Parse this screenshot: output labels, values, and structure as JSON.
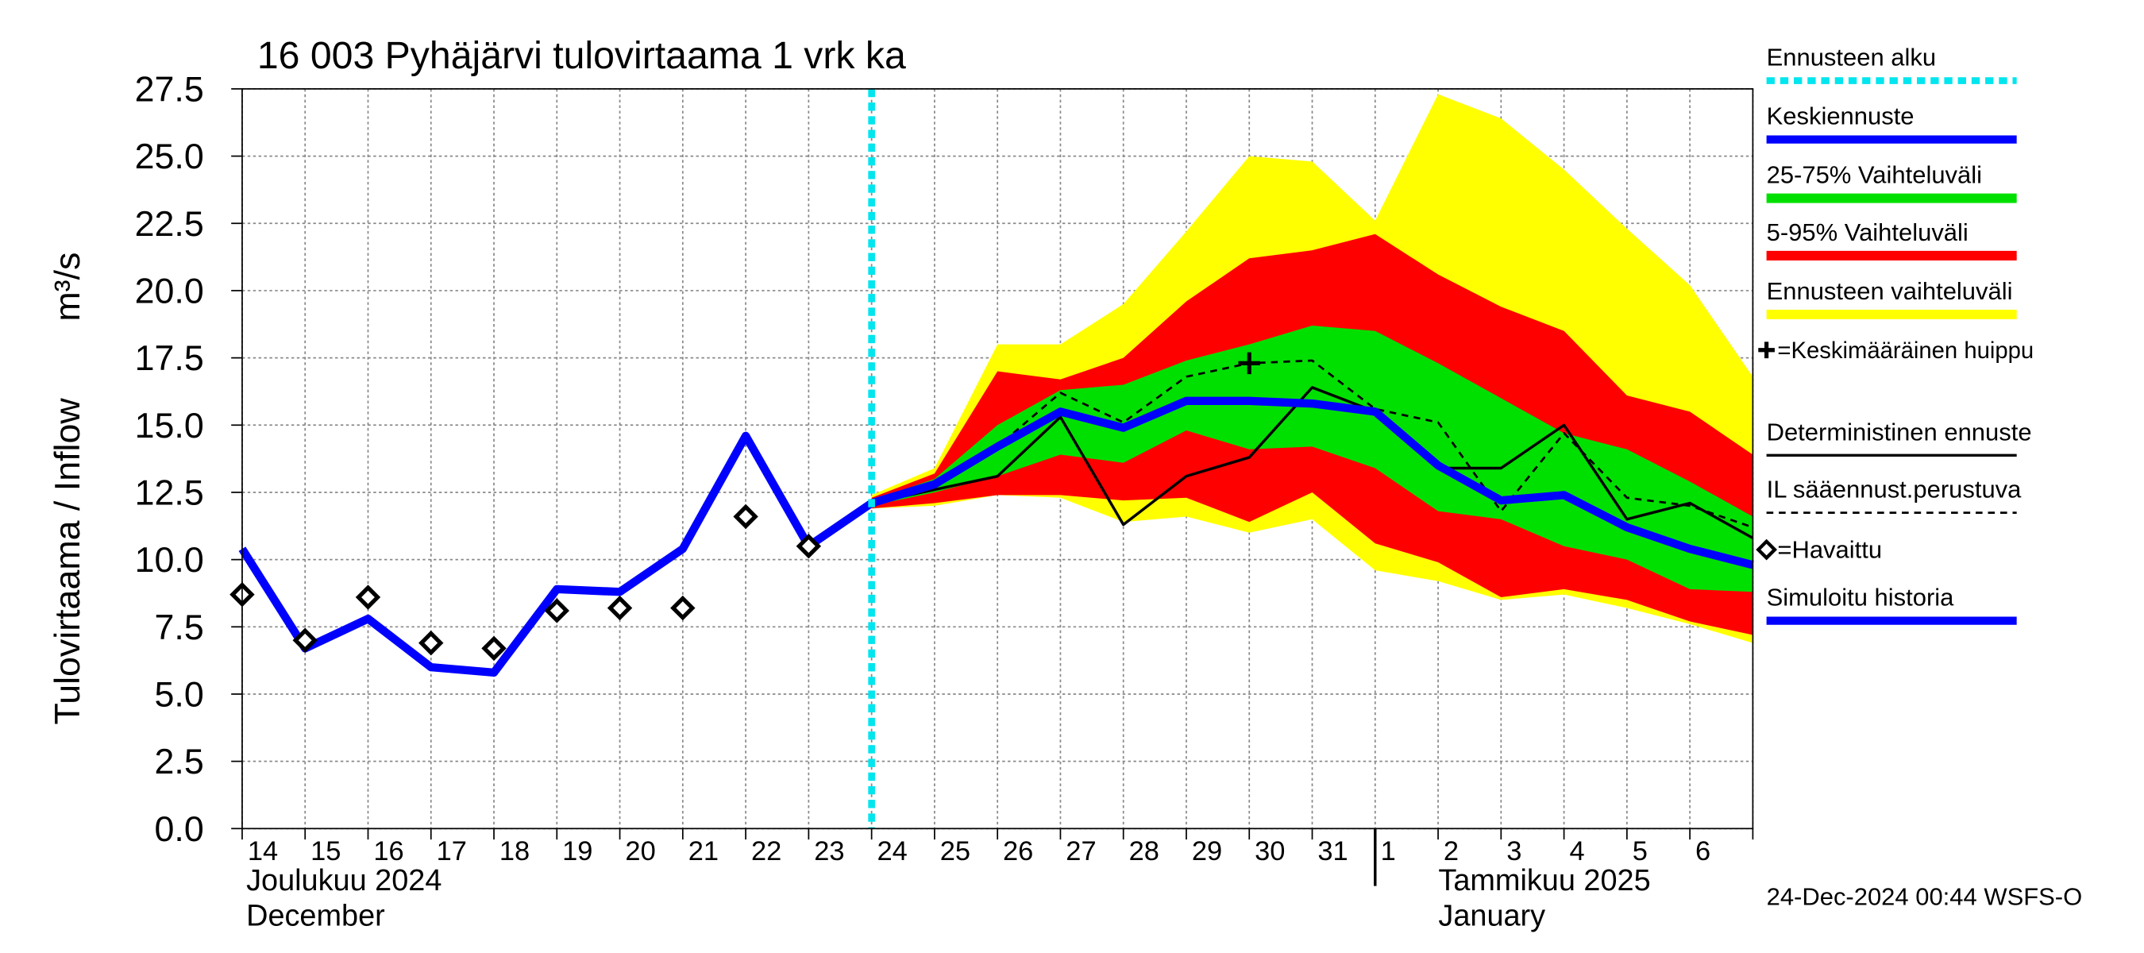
{
  "chart_data": {
    "type": "forecast",
    "title": "16 003 Pyhäjärvi tulovirtaama 1 vrk ka",
    "y_label": "Tulovirtaama / Inflow",
    "y_unit": "m³/s",
    "categories": [
      "14",
      "15",
      "16",
      "17",
      "18",
      "19",
      "20",
      "21",
      "22",
      "23",
      "24",
      "25",
      "26",
      "27",
      "28",
      "29",
      "30",
      "31",
      "1",
      "2",
      "3",
      "4",
      "5",
      "6",
      null
    ],
    "month_labels": [
      "Joulukuu  2024",
      "December",
      "Tammikuu  2025",
      "January"
    ],
    "month_divider": 18,
    "timestamp": "24-Dec-2024 00:44 WSFS-O",
    "ylim": [
      0,
      27.5
    ],
    "yticks": [
      {
        "value": 0,
        "label": "0.0"
      },
      2.5,
      {
        "value": 5,
        "label": "5.0"
      },
      7.5,
      {
        "value": 10,
        "label": "10.0"
      },
      12.5,
      {
        "value": 15,
        "label": "15.0"
      },
      17.5,
      {
        "value": 20,
        "label": "20.0"
      },
      22.5,
      {
        "value": 25,
        "label": "25.0"
      },
      27.5
    ],
    "grid": true,
    "series": [
      {
        "name": "Ennusteen alku",
        "kind": "vline",
        "color": "#00e5ee",
        "x": 10
      },
      {
        "name": "Keskiennuste",
        "kind": "line",
        "line_style": "thick",
        "color": "#0000ff",
        "values": [
          null,
          null,
          null,
          null,
          null,
          null,
          null,
          null,
          null,
          null,
          12.1,
          12.8,
          14.2,
          15.5,
          14.9,
          15.9,
          15.9,
          15.8,
          15.5,
          13.5,
          12.2,
          12.4,
          11.2,
          10.4,
          9.8
        ]
      },
      {
        "name": "25-75% Vaihteluväli",
        "kind": "band",
        "color": "#00e000",
        "low": [
          null,
          null,
          null,
          null,
          null,
          null,
          null,
          null,
          null,
          null,
          12.0,
          12.5,
          13.1,
          13.9,
          13.6,
          14.8,
          14.1,
          14.2,
          13.4,
          11.8,
          11.5,
          10.5,
          10.0,
          8.9,
          8.8
        ],
        "high": [
          null,
          null,
          null,
          null,
          null,
          null,
          null,
          null,
          null,
          null,
          12.2,
          13.0,
          15.0,
          16.3,
          16.5,
          17.4,
          18.0,
          18.7,
          18.5,
          17.3,
          16.0,
          14.7,
          14.1,
          12.9,
          11.6
        ]
      },
      {
        "name": "5-95% Vaihteluväli",
        "kind": "band",
        "color": "#ff0000",
        "low": [
          null,
          null,
          null,
          null,
          null,
          null,
          null,
          null,
          null,
          null,
          11.9,
          12.1,
          12.4,
          12.4,
          12.2,
          12.3,
          11.4,
          12.5,
          10.6,
          9.9,
          8.6,
          8.9,
          8.5,
          7.7,
          7.2
        ],
        "high": [
          null,
          null,
          null,
          null,
          null,
          null,
          null,
          null,
          null,
          null,
          12.3,
          13.2,
          17.0,
          16.7,
          17.5,
          19.6,
          21.2,
          21.5,
          22.1,
          20.6,
          19.4,
          18.5,
          16.1,
          15.5,
          13.9
        ]
      },
      {
        "name": "Ennusteen vaihteluväli",
        "kind": "band",
        "color": "#ffff00",
        "low": [
          null,
          null,
          null,
          null,
          null,
          null,
          null,
          null,
          null,
          null,
          11.9,
          12.0,
          12.4,
          12.3,
          11.4,
          11.6,
          11.0,
          11.5,
          9.6,
          9.2,
          8.5,
          8.7,
          8.2,
          7.6,
          6.9
        ],
        "high": [
          null,
          null,
          null,
          null,
          null,
          null,
          null,
          null,
          null,
          null,
          12.4,
          13.4,
          18.0,
          18.0,
          19.5,
          22.2,
          25.0,
          24.8,
          22.6,
          27.3,
          26.4,
          24.5,
          22.3,
          20.2,
          16.8
        ]
      },
      {
        "name": "=Keskimääräinen huippu",
        "kind": "peak",
        "color": "#000000",
        "x": 16,
        "value": 17.3
      },
      {
        "name": "Deterministinen ennuste",
        "kind": "line",
        "line_style": "thin",
        "color": "#000000",
        "values": [
          null,
          null,
          null,
          null,
          null,
          null,
          null,
          null,
          null,
          null,
          12.1,
          12.6,
          13.1,
          15.3,
          11.3,
          13.1,
          13.8,
          16.4,
          15.5,
          13.4,
          13.4,
          15.0,
          11.5,
          12.1,
          10.8
        ]
      },
      {
        "name": "IL sääennust.perustuva",
        "kind": "line",
        "line_style": "dashed",
        "color": "#000000",
        "values": [
          null,
          null,
          null,
          null,
          null,
          null,
          null,
          null,
          null,
          null,
          12.1,
          12.8,
          14.2,
          16.2,
          15.1,
          16.8,
          17.3,
          17.4,
          15.6,
          15.1,
          11.8,
          14.7,
          12.3,
          12.0,
          11.2
        ]
      },
      {
        "name": "=Havaittu",
        "kind": "marker",
        "color": "#000000",
        "values": [
          8.7,
          7.0,
          8.6,
          6.9,
          6.7,
          8.1,
          8.2,
          8.2,
          11.6,
          10.5,
          null,
          null,
          null,
          null,
          null,
          null,
          null,
          null,
          null,
          null,
          null,
          null,
          null,
          null,
          null
        ]
      },
      {
        "name": "Simuloitu historia",
        "kind": "line",
        "line_style": "thick",
        "color": "#0000ff",
        "values": [
          10.4,
          6.7,
          7.8,
          6.0,
          5.8,
          8.9,
          8.8,
          10.4,
          14.6,
          10.5,
          12.1,
          null,
          null,
          null,
          null,
          null,
          null,
          null,
          null,
          null,
          null,
          null,
          null,
          null,
          null
        ]
      }
    ]
  }
}
